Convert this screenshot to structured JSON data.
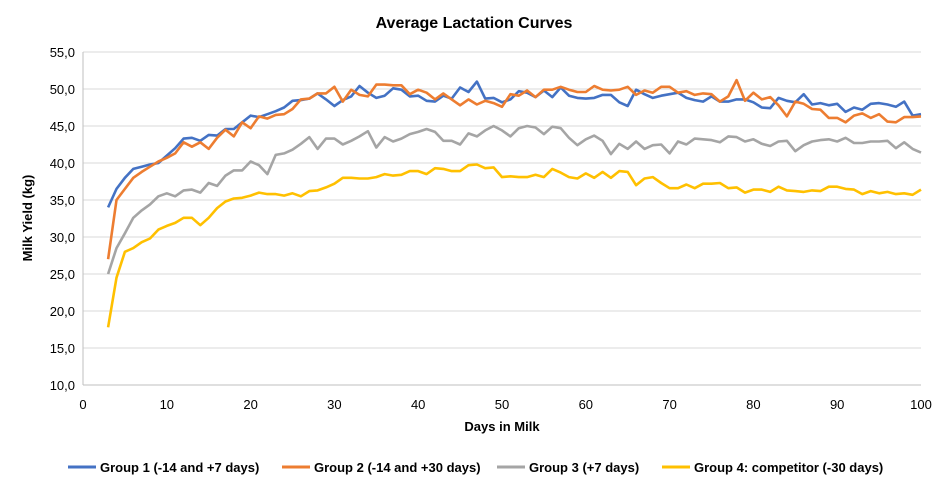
{
  "chart_data": {
    "type": "line",
    "title": "Average Lactation Curves",
    "xlabel": "Days in Milk",
    "ylabel": "Milk Yield (kg)",
    "xlim": [
      0,
      100
    ],
    "ylim": [
      10,
      55
    ],
    "x_ticks": [
      "0",
      "10",
      "20",
      "30",
      "40",
      "50",
      "60",
      "70",
      "80",
      "90",
      "100"
    ],
    "y_ticks": [
      "10,0",
      "15,0",
      "20,0",
      "25,0",
      "30,0",
      "35,0",
      "40,0",
      "45,0",
      "50,0",
      "55,0"
    ],
    "grid": "horizontal",
    "legend_position": "bottom",
    "x_start": 3,
    "series": [
      {
        "name": "Group 1 (-14 and +7 days)",
        "color": "#4472C4",
        "values": [
          34,
          36.5,
          38,
          39.2,
          39.5,
          39.8,
          40,
          41,
          42,
          43.3,
          43.4,
          43,
          43.8,
          43.7,
          44.6,
          44.6,
          45.5,
          46.4,
          46.2,
          46.6,
          47,
          47.5,
          48.4,
          48.5,
          48.7,
          49.4,
          48.6,
          47.7,
          48.5,
          49,
          50.4,
          49.5,
          48.8,
          49.1,
          50.1,
          49.9,
          49,
          49.1,
          48.4,
          48.3,
          49.1,
          48.7,
          50.2,
          49.6,
          51,
          48.7,
          48.8,
          48.2,
          48.6,
          49.7,
          49.5,
          48.9,
          49.8,
          48.9,
          50.2,
          49.1,
          48.8,
          48.7,
          48.8,
          49.2,
          49.2,
          48.2,
          47.7,
          49.9,
          49.3,
          48.8,
          49.1,
          49.3,
          49.5,
          48.8,
          48.5,
          48.3,
          49,
          48.3,
          48.3,
          48.6,
          48.6,
          48.2,
          47.5,
          47.4,
          48.8,
          48.4,
          48.2,
          49.3,
          47.9,
          48.1,
          47.8,
          48,
          46.9,
          47.5,
          47.2,
          48,
          48.1,
          47.9,
          47.6,
          48.3,
          46.4,
          46.6
        ]
      },
      {
        "name": "Group 2 (-14 and +30 days)",
        "color": "#ED7D31",
        "values": [
          27,
          35,
          36.5,
          38,
          38.8,
          39.5,
          40.2,
          40.7,
          41.3,
          42.8,
          42.2,
          42.8,
          41.9,
          43.4,
          44.5,
          43.6,
          45.5,
          44.7,
          46.3,
          46,
          46.5,
          46.6,
          47.3,
          48.6,
          48.7,
          49.4,
          49.4,
          50.3,
          48.3,
          49.9,
          49.2,
          49,
          50.6,
          50.6,
          50.5,
          50.5,
          49.3,
          49.9,
          49.5,
          48.6,
          49.4,
          48.6,
          47.8,
          48.6,
          47.9,
          48.4,
          48.1,
          47.6,
          49.3,
          49.1,
          49.8,
          48.9,
          49.9,
          49.9,
          50.3,
          49.9,
          49.6,
          49.6,
          50.4,
          49.9,
          49.8,
          49.9,
          50.3,
          49.2,
          49.8,
          49.5,
          50.3,
          50.3,
          49.5,
          49.7,
          49.2,
          49.4,
          49.3,
          48.3,
          49,
          51.2,
          48.4,
          49.5,
          48.6,
          48.9,
          47.8,
          46.3,
          48.3,
          48,
          47.3,
          47.2,
          46.1,
          46.1,
          45.5,
          46.4,
          46.7,
          46.1,
          46.6,
          45.6,
          45.5,
          46.2,
          46.2,
          46.3
        ]
      },
      {
        "name": "Group 3 (+7 days)",
        "color": "#A5A5A5",
        "values": [
          25,
          28.5,
          30.5,
          32.6,
          33.6,
          34.4,
          35.5,
          35.9,
          35.5,
          36.3,
          36.4,
          36,
          37.3,
          36.9,
          38.3,
          39,
          39,
          40.2,
          39.7,
          38.5,
          41.1,
          41.3,
          41.8,
          42.6,
          43.5,
          41.9,
          43.3,
          43.3,
          42.5,
          43,
          43.6,
          44.3,
          42.1,
          43.5,
          42.9,
          43.3,
          43.9,
          44.2,
          44.6,
          44.2,
          43,
          43,
          42.5,
          44,
          43.6,
          44.4,
          45,
          44.4,
          43.6,
          44.7,
          45,
          44.8,
          43.9,
          44.9,
          44.7,
          43.4,
          42.4,
          43.2,
          43.7,
          43,
          41.2,
          42.6,
          41.9,
          42.9,
          41.9,
          42.4,
          42.5,
          41.3,
          42.9,
          42.5,
          43.3,
          43.2,
          43.1,
          42.8,
          43.6,
          43.5,
          42.9,
          43.2,
          42.6,
          42.3,
          42.9,
          43,
          41.6,
          42.4,
          42.9,
          43.1,
          43.2,
          42.9,
          43.4,
          42.7,
          42.7,
          42.9,
          42.9,
          43,
          42,
          42.8,
          41.9,
          41.4
        ]
      },
      {
        "name": "Group 4: competitor (-30 days)",
        "color": "#FFC000",
        "values": [
          17.8,
          24.5,
          28,
          28.5,
          29.3,
          29.8,
          31,
          31.5,
          31.9,
          32.6,
          32.6,
          31.6,
          32.6,
          33.9,
          34.8,
          35.2,
          35.3,
          35.6,
          36,
          35.8,
          35.8,
          35.6,
          35.9,
          35.5,
          36.2,
          36.3,
          36.7,
          37.2,
          38,
          38,
          37.9,
          37.9,
          38.1,
          38.5,
          38.3,
          38.4,
          38.9,
          38.9,
          38.5,
          39.3,
          39.2,
          38.9,
          38.9,
          39.7,
          39.8,
          39.3,
          39.4,
          38.1,
          38.2,
          38.1,
          38.1,
          38.4,
          38.1,
          39.2,
          38.7,
          38.1,
          37.9,
          38.6,
          38,
          38.8,
          38,
          38.9,
          38.8,
          37,
          37.9,
          38.1,
          37.3,
          36.6,
          36.6,
          37.1,
          36.6,
          37.2,
          37.2,
          37.3,
          36.6,
          36.7,
          36,
          36.4,
          36.4,
          36.1,
          36.8,
          36.3,
          36.2,
          36.1,
          36.3,
          36.2,
          36.8,
          36.8,
          36.5,
          36.4,
          35.8,
          36.2,
          35.9,
          36.1,
          35.8,
          35.9,
          35.7,
          36.4
        ]
      }
    ]
  }
}
